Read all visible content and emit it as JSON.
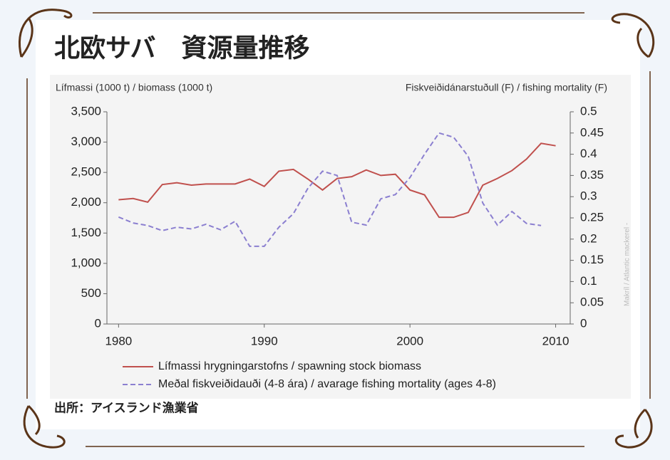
{
  "title": "北欧サバ　資源量推移",
  "source": "出所：アイスランド漁業省",
  "side_note": "Makríl / Atlantic mackerel -",
  "chart_data": {
    "type": "line",
    "y_label": "Lífmassi (1000 t) / biomass (1000 t)",
    "y2_label": "Fiskveiðidánarstuðull (F) / fishing mortality (F)",
    "x": [
      1980,
      1981,
      1982,
      1983,
      1984,
      1985,
      1986,
      1987,
      1988,
      1989,
      1990,
      1991,
      1992,
      1993,
      1994,
      1995,
      1996,
      1997,
      1998,
      1999,
      2000,
      2001,
      2002,
      2003,
      2004,
      2005,
      2006,
      2007,
      2008,
      2009,
      2010
    ],
    "series": [
      {
        "name": "Lífmassi hrygningarstofns / spawning stock biomass",
        "color": "#c0504d",
        "dash": "solid",
        "values": [
          2050,
          2070,
          2010,
          2300,
          2330,
          2290,
          2310,
          2310,
          2310,
          2390,
          2270,
          2520,
          2550,
          2390,
          2210,
          2400,
          2430,
          2540,
          2450,
          2470,
          2210,
          2130,
          1760,
          1760,
          1840,
          2290,
          2400,
          2530,
          2720,
          2980,
          2940
        ]
      },
      {
        "name": "Meðal fiskveiðidauði (4-8 ára) / avarage fishing mortality (ages 4-8)",
        "color": "#8b7fd0",
        "dash": "dashed",
        "axis": "y2",
        "values": [
          0.252,
          0.238,
          0.232,
          0.22,
          0.228,
          0.224,
          0.235,
          0.222,
          0.242,
          0.183,
          0.183,
          0.228,
          0.26,
          0.32,
          0.36,
          0.35,
          0.24,
          0.233,
          0.295,
          0.305,
          0.345,
          0.4,
          0.45,
          0.44,
          0.395,
          0.285,
          0.233,
          0.265,
          0.237,
          0.232,
          null
        ]
      }
    ],
    "xlim": [
      1979.2,
      2011
    ],
    "xticks": [
      1980,
      1990,
      2000,
      2010
    ],
    "ylim": [
      0,
      3500
    ],
    "yticks": [
      0,
      500,
      {
        "value": 1000,
        "label": "1,000"
      },
      {
        "value": 1500,
        "label": "1,500"
      },
      {
        "value": 2000,
        "label": "2,000"
      },
      {
        "value": 2500,
        "label": "2,500"
      },
      {
        "value": 3000,
        "label": "3,000"
      },
      {
        "value": 3500,
        "label": "3,500"
      }
    ],
    "y2lim": [
      0,
      0.5
    ],
    "y2ticks": [
      0,
      0.05,
      0.1,
      0.15,
      0.2,
      0.25,
      0.3,
      0.35,
      0.4,
      0.45,
      0.5
    ],
    "legend": "bottom",
    "grid": false
  }
}
